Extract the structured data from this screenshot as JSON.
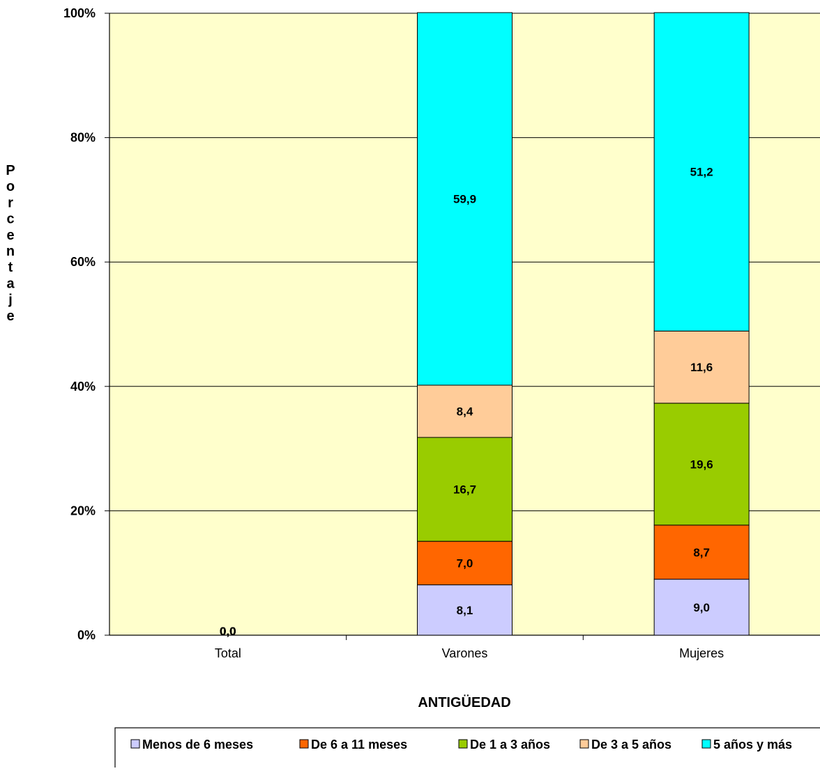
{
  "chart_data": {
    "type": "bar",
    "stacked": true,
    "percent": true,
    "categories": [
      "Total",
      "Varones",
      "Mujeres"
    ],
    "series": [
      {
        "name": "Menos de 6 meses",
        "color": "#ccccff",
        "values": [
          0.0,
          8.1,
          9.0
        ],
        "labels": [
          "0,0",
          "8,1",
          "9,0"
        ]
      },
      {
        "name": "De 6 a 11 meses",
        "color": "#ff6600",
        "values": [
          0.0,
          7.0,
          8.7
        ],
        "labels": [
          "0,0",
          "7,0",
          "8,7"
        ]
      },
      {
        "name": "De 1 a 3 años",
        "color": "#99cc00",
        "values": [
          0.0,
          16.7,
          19.6
        ],
        "labels": [
          "0,0",
          "16,7",
          "19,6"
        ]
      },
      {
        "name": "De 3 a 5 años",
        "color": "#ffcc99",
        "values": [
          0.0,
          8.4,
          11.6
        ],
        "labels": [
          "0,0",
          "8,4",
          "11,6"
        ]
      },
      {
        "name": "5 años y más",
        "color": "#00ffff",
        "values": [
          0.0,
          59.9,
          51.2
        ],
        "labels": [
          "0,0",
          "59,9",
          "51,2"
        ]
      }
    ],
    "yticks": [
      "0%",
      "20%",
      "40%",
      "60%",
      "80%",
      "100%"
    ],
    "ylim": [
      0,
      100
    ],
    "xlabel": "ANTIGÜEDAD",
    "ylabel": "Porcentaje",
    "grid": true,
    "legend": "bottom",
    "plot_background": "#ffffcc"
  }
}
